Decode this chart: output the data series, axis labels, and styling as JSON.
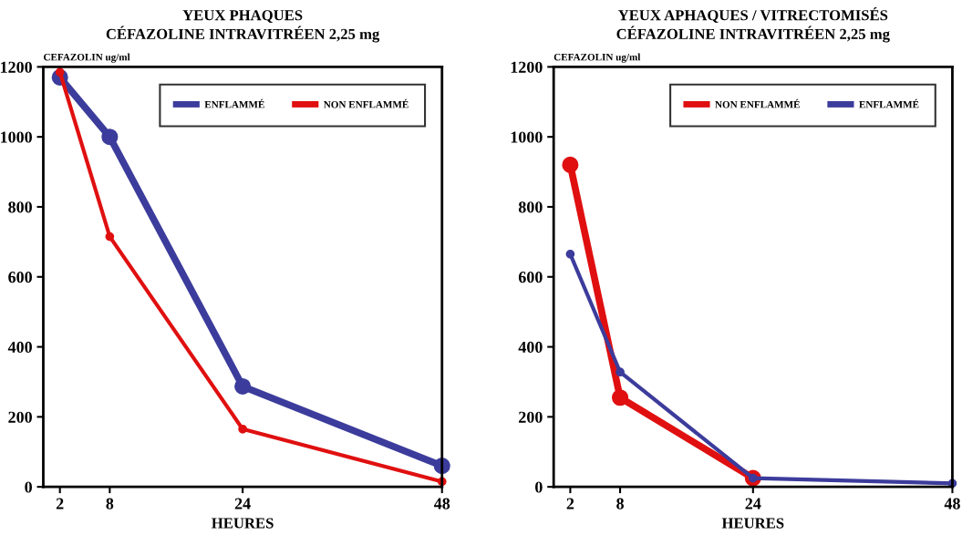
{
  "chart_data": [
    {
      "type": "line",
      "title": "YEUX PHAQUES\nCÉFAZOLINE INTRAVITRÉEN 2,25 mg",
      "ylabel": "CEFAZOLIN ug/ml",
      "xlabel": "HEURES",
      "x": [
        2,
        8,
        24,
        48
      ],
      "xlim": [
        0,
        48
      ],
      "xticks": [
        2,
        8,
        24,
        48
      ],
      "ylim": [
        0,
        1200
      ],
      "yticks": [
        0,
        200,
        400,
        600,
        800,
        1000,
        1200
      ],
      "legend": "top right",
      "marker": "circle",
      "line_style": "solid",
      "grid": false,
      "series": [
        {
          "name": "ENFLAMMÉ",
          "color": "#3c3c9c",
          "values": [
            1170,
            1000,
            287,
            60
          ]
        },
        {
          "name": "NON ENFLAMMÉ",
          "color": "#e01010",
          "values": [
            1185,
            715,
            165,
            15
          ]
        }
      ]
    },
    {
      "type": "line",
      "title": "YEUX APHAQUES / VITRECTOMISÉS\nCÉFAZOLINE INTRAVITRÉEN 2,25 mg",
      "ylabel": "CEFAZOLIN ug/ml",
      "xlabel": "HEURES",
      "x": [
        2,
        8,
        24,
        48
      ],
      "xlim": [
        0,
        48
      ],
      "xticks": [
        2,
        8,
        24,
        48
      ],
      "ylim": [
        0,
        1200
      ],
      "yticks": [
        0,
        200,
        400,
        600,
        800,
        1000,
        1200
      ],
      "legend": "top right",
      "marker": "circle",
      "line_style": "solid",
      "grid": false,
      "series": [
        {
          "name": "NON ENFLAMMÉ",
          "color": "#e01010",
          "values": [
            920,
            255,
            25,
            null
          ]
        },
        {
          "name": "ENFLAMMÉ",
          "color": "#3c3c9c",
          "values": [
            665,
            328,
            25,
            10
          ]
        }
      ]
    }
  ]
}
